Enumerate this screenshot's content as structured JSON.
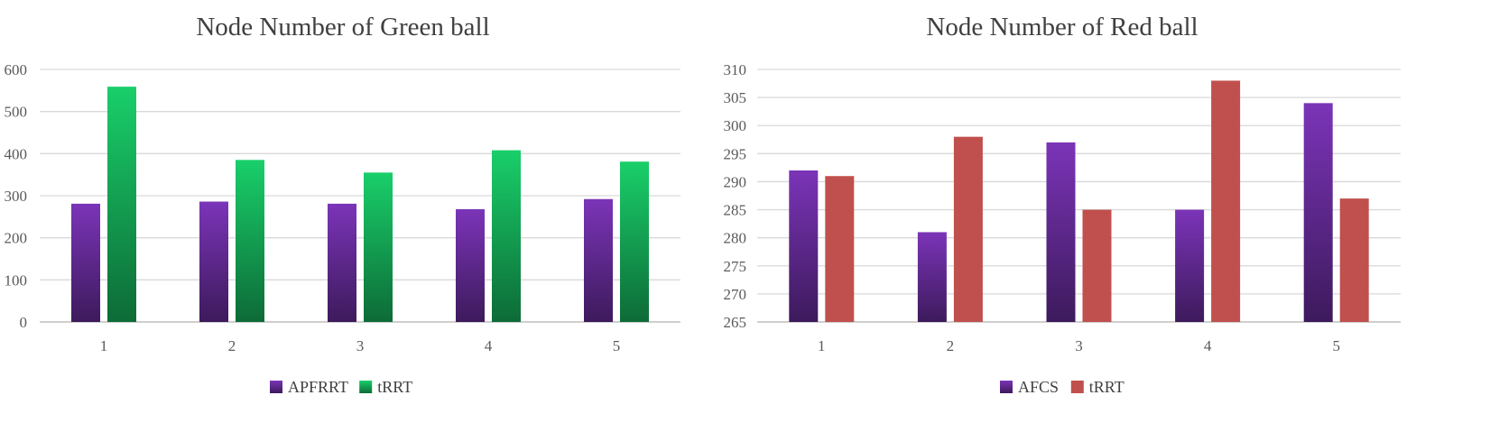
{
  "chart_data": [
    {
      "type": "bar",
      "title": "Node Number of Green ball",
      "categories": [
        "1",
        "2",
        "3",
        "4",
        "5"
      ],
      "ylim": [
        0,
        600
      ],
      "yticks": [
        0,
        100,
        200,
        300,
        400,
        500,
        600
      ],
      "grid": true,
      "legend_position": "bottom",
      "series": [
        {
          "name": "APFRRT",
          "values": [
            281,
            286,
            281,
            268,
            292
          ],
          "color_top": "#7b34b8",
          "color_bottom": "#3d1a5c"
        },
        {
          "name": "tRRT",
          "values": [
            559,
            385,
            355,
            408,
            381
          ],
          "color_top": "#19cf6a",
          "color_bottom": "#0d6b37"
        }
      ]
    },
    {
      "type": "bar",
      "title": "Node Number of Red ball",
      "categories": [
        "1",
        "2",
        "3",
        "4",
        "5"
      ],
      "ylim": [
        265,
        310
      ],
      "yticks": [
        265,
        270,
        275,
        280,
        285,
        290,
        295,
        300,
        305,
        310
      ],
      "grid": true,
      "legend_position": "bottom",
      "series": [
        {
          "name": "AFCS",
          "values": [
            292,
            281,
            297,
            285,
            304
          ],
          "color_top": "#7b34b8",
          "color_bottom": "#3d1a5c"
        },
        {
          "name": "tRRT",
          "values": [
            291,
            298,
            285,
            308,
            287
          ],
          "color_top": "#c0504d",
          "color_bottom": "#c0504d"
        }
      ]
    }
  ]
}
